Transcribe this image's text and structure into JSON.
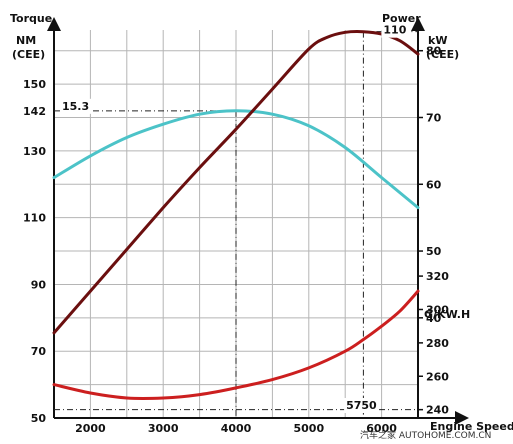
{
  "chart_data": {
    "type": "line",
    "x_axis": {
      "title": "Engine Speed",
      "ticks": [
        2000,
        3000,
        4000,
        5000,
        6000
      ],
      "tick_labels": [
        "2000",
        "3000",
        "4000",
        "5000",
        "6000"
      ],
      "range": [
        1500,
        6500
      ]
    },
    "y_left": {
      "title": "Torque",
      "unit": "NM",
      "unit2": "(CEE)",
      "ticks": [
        50,
        70,
        90,
        110,
        130,
        150
      ],
      "tick_labels": [
        "50",
        "70",
        "90",
        "110",
        "130",
        "150"
      ],
      "range": [
        50,
        168
      ]
    },
    "y_right_power": {
      "title": "Power",
      "unit": "kW",
      "unit2": "(CEE)",
      "ticks": [
        40,
        50,
        60,
        70,
        80
      ],
      "tick_labels": [
        "40",
        "50",
        "60",
        "70",
        "80"
      ]
    },
    "y_right_consumption": {
      "unit": "G/KW.H",
      "ticks": [
        240,
        260,
        280,
        300,
        320
      ],
      "tick_labels": [
        "240",
        "260",
        "280",
        "300",
        "320"
      ]
    },
    "series": [
      {
        "key": "torque",
        "color": "#4cc3c8",
        "x": [
          1500,
          2000,
          2500,
          3000,
          3500,
          4000,
          4500,
          5000,
          5500,
          6000,
          6500
        ],
        "y": [
          122,
          128.5,
          134,
          138,
          141,
          142,
          141,
          137.5,
          131,
          122,
          113
        ]
      },
      {
        "key": "power",
        "color": "#6b0f0f",
        "x": [
          1500,
          2000,
          2500,
          3000,
          3500,
          4000,
          4500,
          5000,
          5250,
          5500,
          5750,
          6000,
          6250,
          6500
        ],
        "y": [
          75.5,
          88,
          100.5,
          113,
          125,
          136.5,
          148.5,
          160.5,
          164,
          165.5,
          165.7,
          165,
          163,
          159
        ]
      },
      {
        "key": "consumption",
        "color": "#cc1f1f",
        "x": [
          1500,
          2000,
          2500,
          3000,
          3500,
          4000,
          4500,
          5000,
          5500,
          5750,
          6000,
          6250,
          6500
        ],
        "y": [
          60,
          57.5,
          56,
          56,
          57,
          59,
          61.5,
          65,
          70,
          73.5,
          77.5,
          82,
          88
        ]
      }
    ],
    "annotations": {
      "torque_peak_value": "142",
      "torque_peak_label": "15.3",
      "power_peak_label": "110",
      "power_peak_rpm_label": "5750",
      "torque_peak_rpm": 4000,
      "power_peak_rpm": 5750
    },
    "grid": true
  },
  "watermark": "汽车之家 AUTOHOME.COM.CN"
}
